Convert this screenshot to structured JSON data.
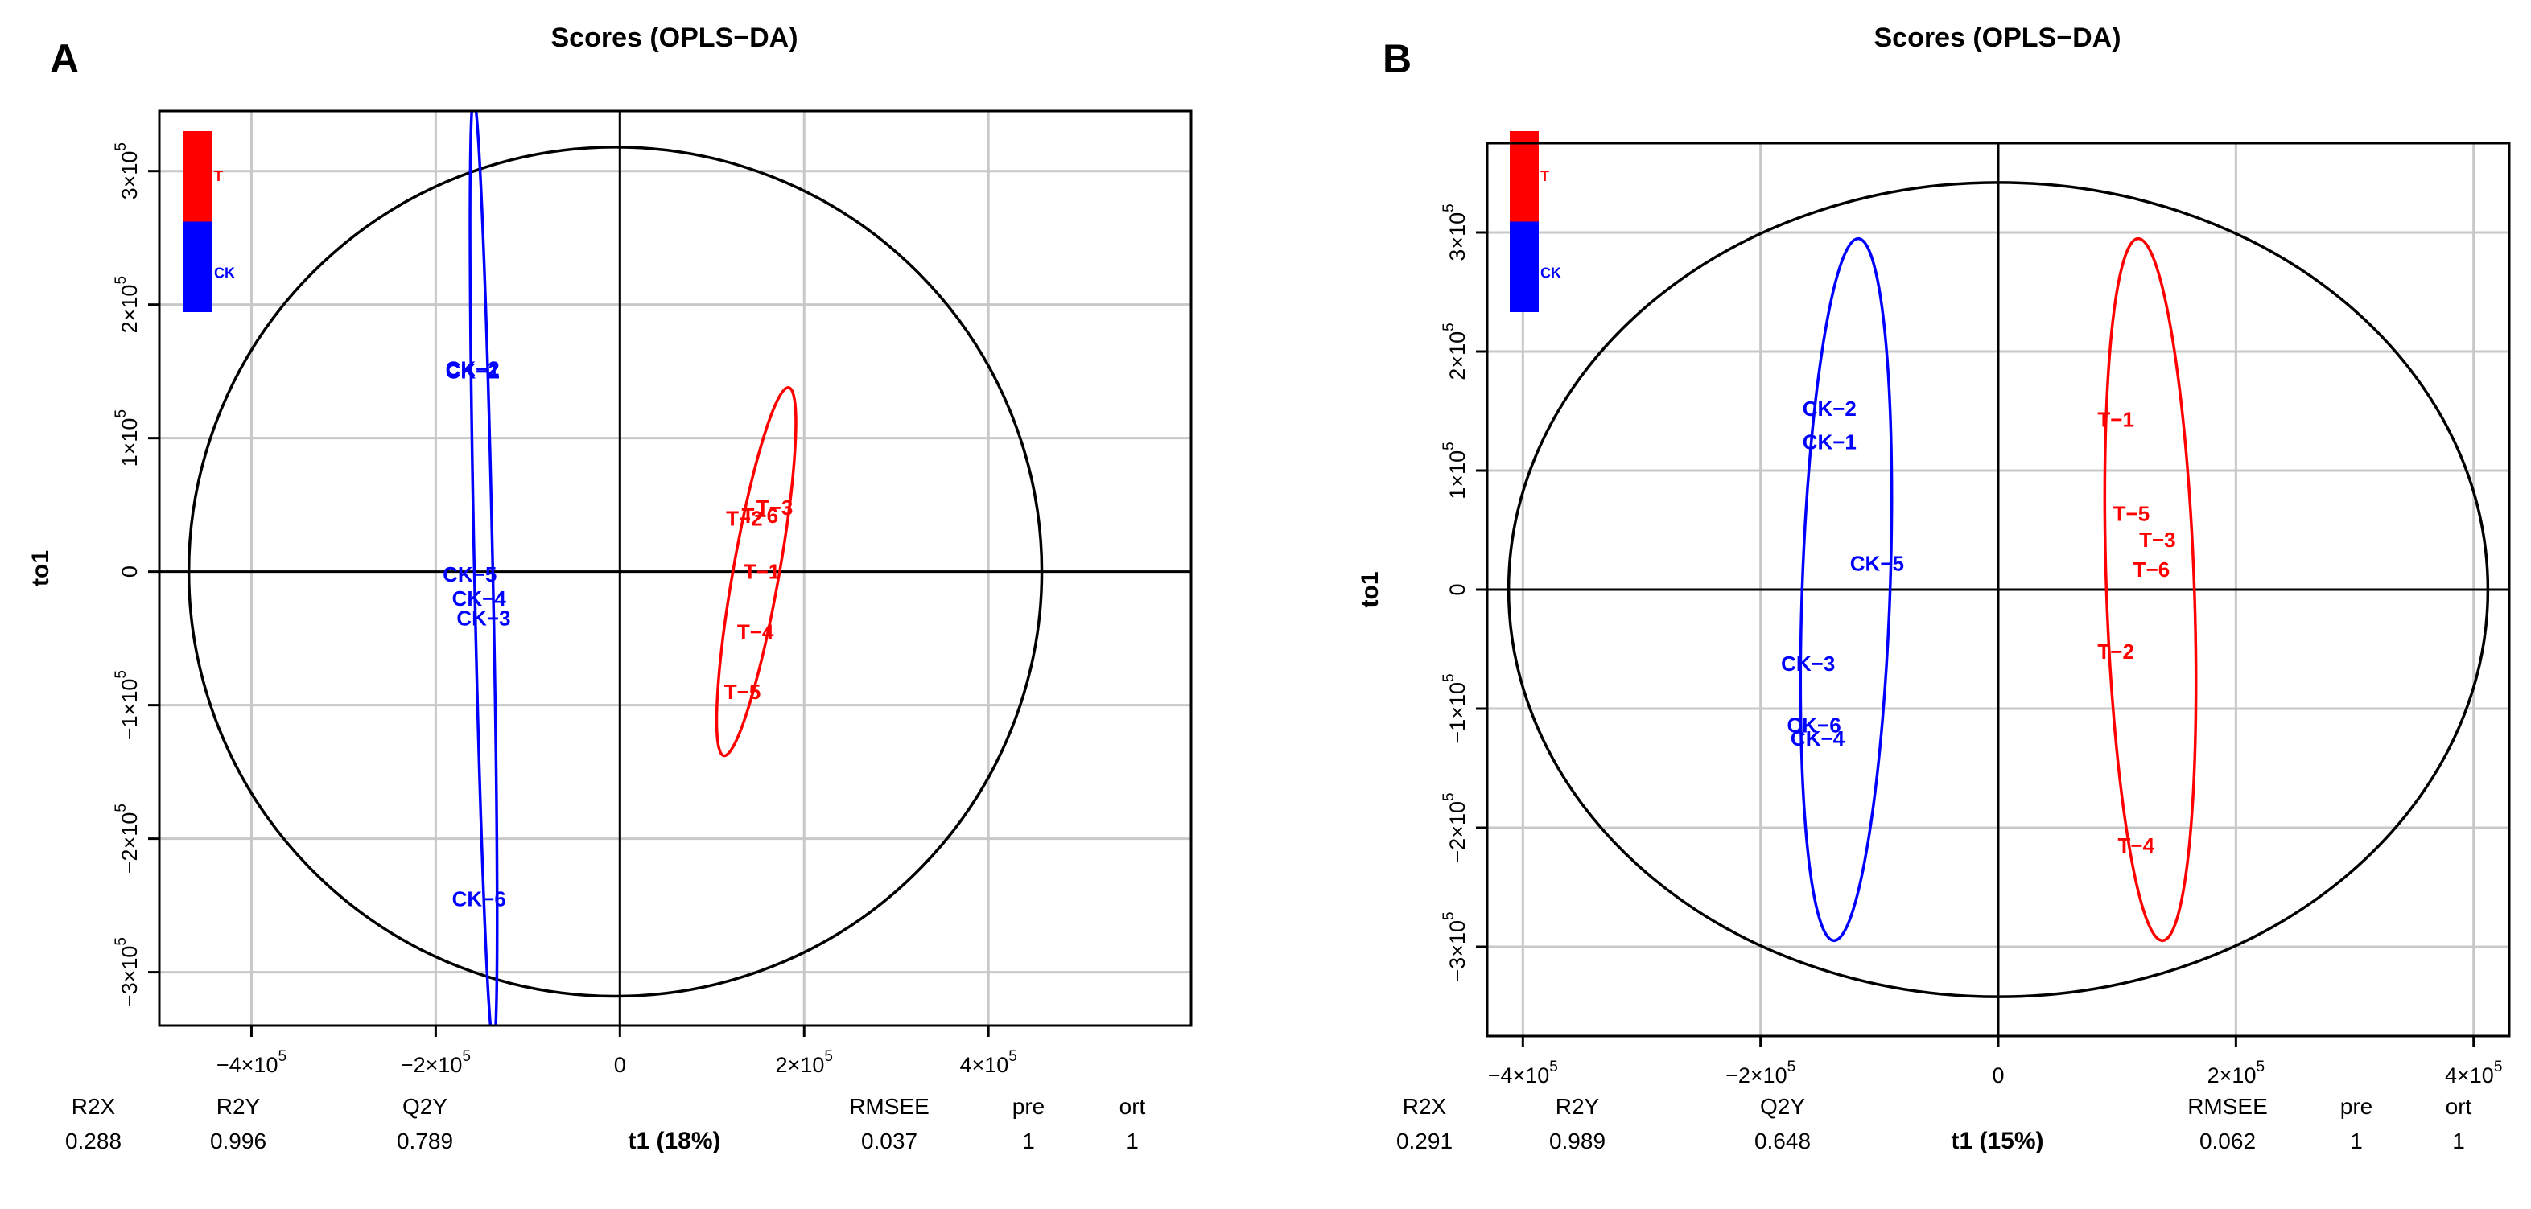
{
  "chart_data": [
    {
      "type": "scatter",
      "panel_label": "A",
      "title": "Scores (OPLS−DA)",
      "xlabel": "t1 (18%)",
      "ylabel": "to1",
      "xlim": [
        -500000,
        620000
      ],
      "ylim": [
        -340000,
        345000
      ],
      "xticks": [
        {
          "value": -400000,
          "label": "−4×10",
          "exp": "5"
        },
        {
          "value": -200000,
          "label": "−2×10",
          "exp": "5"
        },
        {
          "value": 0,
          "label": "0",
          "exp": ""
        },
        {
          "value": 200000,
          "label": "2×10",
          "exp": "5"
        },
        {
          "value": 400000,
          "label": "4×10",
          "exp": "5"
        }
      ],
      "yticks": [
        {
          "value": -300000,
          "label": "−3×10",
          "exp": "5"
        },
        {
          "value": -200000,
          "label": "−2×10",
          "exp": "5"
        },
        {
          "value": -100000,
          "label": "−1×10",
          "exp": "5"
        },
        {
          "value": 0,
          "label": "0",
          "exp": ""
        },
        {
          "value": 100000,
          "label": "1×10",
          "exp": "5"
        },
        {
          "value": 200000,
          "label": "2×10",
          "exp": "5"
        },
        {
          "value": 300000,
          "label": "3×10",
          "exp": "5"
        }
      ],
      "grid": true,
      "legend": {
        "position": "top-left",
        "entries": [
          {
            "name": "T",
            "color": "#ff0000"
          },
          {
            "name": "CK",
            "color": "#0000ff"
          }
        ]
      },
      "hotelling_ellipse": {
        "cx": -5000,
        "cy": 0,
        "rx": 463000,
        "ry": 318000,
        "color": "#000000"
      },
      "series": [
        {
          "name": "CK",
          "color": "#0000ff",
          "ellipse": {
            "cx": -148000,
            "cy": 0,
            "rx": 10000,
            "ry": 355000,
            "angle": -1.2
          },
          "points": [
            {
              "label": "CK−1",
              "x": -160000,
              "y": 150000
            },
            {
              "label": "CK−2",
              "x": -160000,
              "y": 152000
            },
            {
              "label": "CK−5",
              "x": -163000,
              "y": -2000
            },
            {
              "label": "CK−4",
              "x": -153000,
              "y": -20000
            },
            {
              "label": "CK−3",
              "x": -148000,
              "y": -35000
            },
            {
              "label": "CK−6",
              "x": -153000,
              "y": -245000
            }
          ]
        },
        {
          "name": "T",
          "color": "#ff0000",
          "ellipse": {
            "cx": 148000,
            "cy": 0,
            "rx": 25000,
            "ry": 140000,
            "angle": 10
          },
          "points": [
            {
              "label": "T−3",
              "x": 168000,
              "y": 48000
            },
            {
              "label": "T−2",
              "x": 135000,
              "y": 40000
            },
            {
              "label": "T−6",
              "x": 152000,
              "y": 42000
            },
            {
              "label": "T−1",
              "x": 154000,
              "y": 0
            },
            {
              "label": "T−4",
              "x": 147000,
              "y": -45000
            },
            {
              "label": "T−5",
              "x": 133000,
              "y": -90000
            }
          ]
        }
      ],
      "stats": [
        {
          "name": "R2X",
          "value": "0.288"
        },
        {
          "name": "R2Y",
          "value": "0.996"
        },
        {
          "name": "Q2Y",
          "value": "0.789"
        },
        {
          "name": "RMSEE",
          "value": "0.037"
        },
        {
          "name": "pre",
          "value": "1"
        },
        {
          "name": "ort",
          "value": "1"
        }
      ]
    },
    {
      "type": "scatter",
      "panel_label": "B",
      "title": "Scores (OPLS−DA)",
      "xlabel": "t1 (15%)",
      "ylabel": "to1",
      "xlim": [
        -430000,
        430000
      ],
      "ylim": [
        -375000,
        375000
      ],
      "xticks": [
        {
          "value": -400000,
          "label": "−4×10",
          "exp": "5"
        },
        {
          "value": -200000,
          "label": "−2×10",
          "exp": "5"
        },
        {
          "value": 0,
          "label": "0",
          "exp": ""
        },
        {
          "value": 200000,
          "label": "2×10",
          "exp": "5"
        },
        {
          "value": 400000,
          "label": "4×10",
          "exp": "5"
        }
      ],
      "yticks": [
        {
          "value": -300000,
          "label": "−3×10",
          "exp": "5"
        },
        {
          "value": -200000,
          "label": "−2×10",
          "exp": "5"
        },
        {
          "value": -100000,
          "label": "−1×10",
          "exp": "5"
        },
        {
          "value": 0,
          "label": "0",
          "exp": ""
        },
        {
          "value": 100000,
          "label": "1×10",
          "exp": "5"
        },
        {
          "value": 200000,
          "label": "2×10",
          "exp": "5"
        },
        {
          "value": 300000,
          "label": "3×10",
          "exp": "5"
        }
      ],
      "grid": true,
      "legend": {
        "position": "top-left",
        "entries": [
          {
            "name": "T",
            "color": "#ff0000"
          },
          {
            "name": "CK",
            "color": "#0000ff"
          }
        ]
      },
      "hotelling_ellipse": {
        "cx": 0,
        "cy": 0,
        "rx": 412000,
        "ry": 342000,
        "color": "#000000"
      },
      "series": [
        {
          "name": "CK",
          "color": "#0000ff",
          "ellipse": {
            "cx": -128000,
            "cy": 0,
            "rx": 37000,
            "ry": 295000,
            "angle": 2
          },
          "points": [
            {
              "label": "CK−2",
              "x": -142000,
              "y": 152000
            },
            {
              "label": "CK−1",
              "x": -142000,
              "y": 124000
            },
            {
              "label": "CK−5",
              "x": -102000,
              "y": 22000
            },
            {
              "label": "CK−3",
              "x": -160000,
              "y": -62000
            },
            {
              "label": "CK−6",
              "x": -155000,
              "y": -114000
            },
            {
              "label": "CK−4",
              "x": -152000,
              "y": -125000
            }
          ]
        },
        {
          "name": "T",
          "color": "#ff0000",
          "ellipse": {
            "cx": 128000,
            "cy": 0,
            "rx": 37000,
            "ry": 295000,
            "angle": -2
          },
          "points": [
            {
              "label": "T−1",
              "x": 99000,
              "y": 143000
            },
            {
              "label": "T−5",
              "x": 112000,
              "y": 64000
            },
            {
              "label": "T−3",
              "x": 134000,
              "y": 42000
            },
            {
              "label": "T−6",
              "x": 129000,
              "y": 17000
            },
            {
              "label": "T−2",
              "x": 99000,
              "y": -52000
            },
            {
              "label": "T−4",
              "x": 116000,
              "y": -215000
            }
          ]
        }
      ],
      "stats": [
        {
          "name": "R2X",
          "value": "0.291"
        },
        {
          "name": "R2Y",
          "value": "0.989"
        },
        {
          "name": "Q2Y",
          "value": "0.648"
        },
        {
          "name": "RMSEE",
          "value": "0.062"
        },
        {
          "name": "pre",
          "value": "1"
        },
        {
          "name": "ort",
          "value": "1"
        }
      ]
    }
  ]
}
